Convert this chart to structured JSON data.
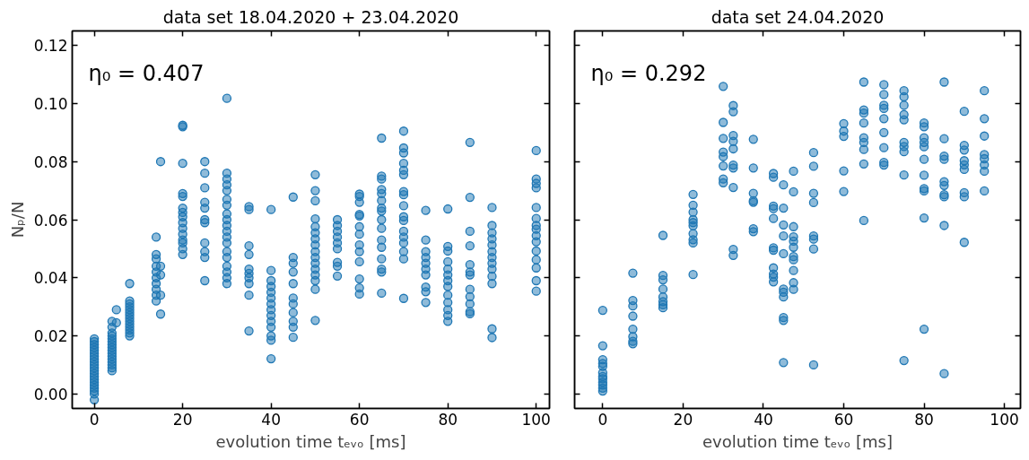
{
  "chart_data": [
    {
      "type": "scatter",
      "title": "data set 18.04.2020 + 23.04.2020",
      "xlabel": "evolution time tₑᵥₒ [ms]",
      "ylabel": "Nₚ/N",
      "annotations": [
        "η₀ = 0.407"
      ],
      "marker": "circle",
      "grid": false,
      "xlim": [
        -5,
        103
      ],
      "ylim": [
        -0.005,
        0.125
      ],
      "xticks": [
        0,
        20,
        40,
        60,
        80,
        100
      ],
      "yticks": [
        {
          "value": 0,
          "label": "0.00"
        },
        {
          "value": 0.02,
          "label": "0.02"
        },
        {
          "value": 0.04,
          "label": "0.04"
        },
        {
          "value": 0.06,
          "label": "0.06"
        },
        {
          "value": 0.08,
          "label": "0.08"
        },
        {
          "value": 0.1,
          "label": "0.10"
        },
        {
          "value": 0.12,
          "label": "0.12"
        }
      ],
      "series": [
        {
          "color": "#1f77b4",
          "x": [
            0,
            0,
            0,
            0,
            0,
            0,
            0,
            0,
            0,
            0,
            0,
            0,
            0,
            0,
            0,
            0,
            0,
            0,
            0,
            0,
            0,
            4,
            4,
            4,
            4,
            4,
            4,
            4,
            4,
            4,
            4,
            4,
            4,
            4,
            4,
            4,
            4,
            5,
            5,
            8,
            8,
            8,
            8,
            8,
            8,
            8,
            8,
            8,
            8,
            8,
            8,
            8,
            8,
            14,
            14,
            14,
            14,
            14,
            14,
            14,
            14,
            14,
            14,
            15,
            15,
            15,
            15,
            15,
            20,
            20,
            20,
            20,
            20,
            20,
            20,
            20,
            20,
            20,
            20,
            20,
            20,
            20,
            20,
            25,
            25,
            25,
            25,
            25,
            25,
            25,
            25,
            25,
            25,
            25,
            30,
            30,
            30,
            30,
            30,
            30,
            30,
            30,
            30,
            30,
            30,
            30,
            30,
            30,
            30,
            30,
            30,
            30,
            30,
            35,
            35,
            35,
            35,
            35,
            35,
            35,
            35,
            35,
            35,
            40,
            40,
            40,
            40,
            40,
            40,
            40,
            40,
            40,
            40,
            40,
            40,
            40,
            40,
            45,
            45,
            45,
            45,
            45,
            45,
            45,
            45,
            45,
            45,
            45,
            50,
            50,
            50,
            50,
            50,
            50,
            50,
            50,
            50,
            50,
            50,
            50,
            50,
            50,
            50,
            50,
            55,
            55,
            55,
            55,
            55,
            55,
            55,
            55,
            55,
            60,
            60,
            60,
            60,
            60,
            60,
            60,
            60,
            60,
            60,
            60,
            60,
            60,
            65,
            65,
            65,
            65,
            65,
            65,
            65,
            65,
            65,
            65,
            65,
            65,
            65,
            65,
            65,
            65,
            70,
            70,
            70,
            70,
            70,
            70,
            70,
            70,
            70,
            70,
            70,
            70,
            70,
            70,
            70,
            70,
            70,
            75,
            75,
            75,
            75,
            75,
            75,
            75,
            75,
            75,
            75,
            80,
            80,
            80,
            80,
            80,
            80,
            80,
            80,
            80,
            80,
            80,
            80,
            80,
            85,
            85,
            85,
            85,
            85,
            85,
            85,
            85,
            85,
            85,
            85,
            85,
            90,
            90,
            90,
            90,
            90,
            90,
            90,
            90,
            90,
            90,
            90,
            90,
            90,
            100,
            100,
            100,
            100,
            100,
            100,
            100,
            100,
            100,
            100,
            100,
            100,
            100,
            100,
            100
          ],
          "values": [
            0.019,
            0.018,
            0.017,
            0.016,
            0.015,
            0.014,
            0.013,
            0.012,
            0.011,
            0.01,
            0.009,
            0.008,
            0.007,
            0.006,
            0.005,
            0.004,
            0.003,
            0.002,
            0.001,
            0.0,
            -0.002,
            0.025,
            0.023,
            0.021,
            0.02,
            0.019,
            0.018,
            0.017,
            0.016,
            0.015,
            0.014,
            0.013,
            0.012,
            0.011,
            0.01,
            0.009,
            0.008,
            0.029,
            0.0245,
            0.038,
            0.032,
            0.031,
            0.03,
            0.029,
            0.028,
            0.027,
            0.026,
            0.025,
            0.024,
            0.023,
            0.022,
            0.021,
            0.02,
            0.054,
            0.048,
            0.0465,
            0.044,
            0.042,
            0.04,
            0.038,
            0.036,
            0.034,
            0.032,
            0.08,
            0.044,
            0.041,
            0.034,
            0.0275,
            0.0925,
            0.092,
            0.0794,
            0.069,
            0.068,
            0.064,
            0.0625,
            0.061,
            0.059,
            0.057,
            0.055,
            0.053,
            0.052,
            0.05,
            0.048,
            0.08,
            0.076,
            0.071,
            0.066,
            0.064,
            0.06,
            0.059,
            0.052,
            0.049,
            0.047,
            0.039,
            0.1018,
            0.076,
            0.074,
            0.072,
            0.07,
            0.067,
            0.065,
            0.062,
            0.06,
            0.058,
            0.056,
            0.054,
            0.052,
            0.049,
            0.047,
            0.044,
            0.042,
            0.04,
            0.038,
            0.0645,
            0.0635,
            0.051,
            0.048,
            0.043,
            0.0415,
            0.04,
            0.038,
            0.034,
            0.0217,
            0.0635,
            0.0425,
            0.039,
            0.037,
            0.035,
            0.033,
            0.031,
            0.029,
            0.027,
            0.025,
            0.023,
            0.02,
            0.0185,
            0.0121,
            0.0678,
            0.047,
            0.045,
            0.042,
            0.038,
            0.033,
            0.031,
            0.028,
            0.025,
            0.023,
            0.0195,
            0.0755,
            0.07,
            0.0665,
            0.0603,
            0.0576,
            0.0555,
            0.0534,
            0.0513,
            0.049,
            0.047,
            0.045,
            0.043,
            0.041,
            0.039,
            0.036,
            0.0253,
            0.06,
            0.058,
            0.056,
            0.054,
            0.052,
            0.05,
            0.0453,
            0.044,
            0.0406,
            0.0688,
            0.068,
            0.066,
            0.0618,
            0.0613,
            0.0576,
            0.055,
            0.0513,
            0.049,
            0.0455,
            0.0396,
            0.0365,
            0.0344,
            0.0881,
            0.075,
            0.074,
            0.0704,
            0.069,
            0.0666,
            0.064,
            0.063,
            0.06,
            0.057,
            0.053,
            0.0505,
            0.0465,
            0.043,
            0.042,
            0.0347,
            0.0905,
            0.0847,
            0.083,
            0.0794,
            0.077,
            0.0755,
            0.0697,
            0.0686,
            0.0648,
            0.061,
            0.0597,
            0.056,
            0.054,
            0.052,
            0.049,
            0.0465,
            0.0329,
            0.0632,
            0.053,
            0.049,
            0.047,
            0.045,
            0.043,
            0.041,
            0.0368,
            0.0352,
            0.0315,
            0.0637,
            0.0508,
            0.0492,
            0.0455,
            0.043,
            0.041,
            0.039,
            0.037,
            0.034,
            0.0315,
            0.029,
            0.027,
            0.025,
            0.0866,
            0.0677,
            0.056,
            0.051,
            0.0445,
            0.042,
            0.041,
            0.036,
            0.0335,
            0.031,
            0.0276,
            0.0283,
            0.0642,
            0.058,
            0.0555,
            0.0534,
            0.0513,
            0.049,
            0.047,
            0.045,
            0.043,
            0.0405,
            0.038,
            0.0224,
            0.0194,
            0.0838,
            0.074,
            0.0725,
            0.071,
            0.0642,
            0.0604,
            0.058,
            0.0567,
            0.0545,
            0.0524,
            0.0492,
            0.0462,
            0.0434,
            0.039,
            0.0354
          ]
        }
      ]
    },
    {
      "type": "scatter",
      "title": "data set 24.04.2020",
      "xlabel": "evolution time tₑᵥₒ [ms]",
      "annotations": [
        "η₀ = 0.292"
      ],
      "marker": "circle",
      "grid": false,
      "tick_labels": "x",
      "xlim": [
        -7,
        104
      ],
      "ylim": [
        -0.005,
        0.125
      ],
      "xticks": [
        0,
        20,
        40,
        60,
        80,
        100
      ],
      "yticks": [
        {
          "value": 0,
          "label": null
        },
        {
          "value": 0.02,
          "label": null
        },
        {
          "value": 0.04,
          "label": null
        },
        {
          "value": 0.06,
          "label": null
        },
        {
          "value": 0.08,
          "label": null
        },
        {
          "value": 0.1,
          "label": null
        },
        {
          "value": 0.12,
          "label": null
        }
      ],
      "series": [
        {
          "color": "#1f77b4",
          "x": [
            0,
            0,
            0,
            0,
            0,
            0,
            0,
            0,
            0,
            0,
            0,
            0,
            7.5,
            7.5,
            7.5,
            7.5,
            7.5,
            7.5,
            7.5,
            7.5,
            15,
            15,
            15,
            15,
            15,
            15,
            15,
            15,
            22.5,
            22.5,
            22.5,
            22.5,
            22.5,
            22.5,
            22.5,
            22.5,
            22.5,
            22.5,
            30,
            30,
            30,
            30,
            30,
            30,
            30,
            30,
            32.5,
            32.5,
            32.5,
            32.5,
            32.5,
            32.5,
            32.5,
            32.5,
            32.5,
            32.5,
            37.5,
            37.5,
            37.5,
            37.5,
            37.5,
            37.5,
            37.5,
            42.5,
            42.5,
            42.5,
            42.5,
            42.5,
            42.5,
            42.5,
            42.5,
            42.5,
            42.5,
            42.5,
            45,
            45,
            45,
            45,
            45,
            45,
            45,
            45,
            45,
            45,
            45,
            47.5,
            47.5,
            47.5,
            47.5,
            47.5,
            47.5,
            47.5,
            47.5,
            47.5,
            47.5,
            47.5,
            52.5,
            52.5,
            52.5,
            52.5,
            52.5,
            52.5,
            52.5,
            52.5,
            60,
            60,
            60,
            60,
            60,
            65,
            65,
            65,
            65,
            65,
            65,
            65,
            65,
            65,
            70,
            70,
            70,
            70,
            70,
            70,
            70,
            70,
            70,
            75,
            75,
            75,
            75,
            75,
            75,
            75,
            75,
            75,
            75,
            80,
            80,
            80,
            80,
            80,
            80,
            80,
            80,
            80,
            80,
            80,
            85,
            85,
            85,
            85,
            85,
            85,
            85,
            85,
            85,
            85,
            90,
            90,
            90,
            90,
            90,
            90,
            90,
            90,
            90,
            95,
            95,
            95,
            95,
            95,
            95,
            95,
            95
          ],
          "values": [
            0.0288,
            0.0166,
            0.0118,
            0.0105,
            0.0095,
            0.0073,
            0.006,
            0.0052,
            0.004,
            0.0031,
            0.002,
            0.001,
            0.0416,
            0.0322,
            0.0303,
            0.0268,
            0.0223,
            0.0197,
            0.0181,
            0.0173,
            0.0546,
            0.0408,
            0.0393,
            0.0361,
            0.0334,
            0.0318,
            0.0307,
            0.0297,
            0.0687,
            0.065,
            0.0626,
            0.06,
            0.059,
            0.0579,
            0.0552,
            0.0531,
            0.052,
            0.0411,
            0.1059,
            0.0935,
            0.088,
            0.0833,
            0.0817,
            0.0785,
            0.074,
            0.0727,
            0.0993,
            0.0972,
            0.089,
            0.087,
            0.0844,
            0.0788,
            0.0778,
            0.0711,
            0.0498,
            0.0477,
            0.0877,
            0.0778,
            0.0691,
            0.0665,
            0.066,
            0.0569,
            0.0559,
            0.0759,
            0.0746,
            0.0647,
            0.0638,
            0.0604,
            0.0503,
            0.0495,
            0.0434,
            0.0413,
            0.0402,
            0.0386,
            0.072,
            0.064,
            0.0582,
            0.0544,
            0.0483,
            0.0361,
            0.035,
            0.0334,
            0.0263,
            0.0253,
            0.0108,
            0.0767,
            0.0696,
            0.0576,
            0.0541,
            0.0526,
            0.0505,
            0.0473,
            0.0462,
            0.0425,
            0.0383,
            0.036,
            0.0831,
            0.0784,
            0.0691,
            0.0659,
            0.0544,
            0.0533,
            0.0499,
            0.01,
            0.0931,
            0.0905,
            0.0887,
            0.0768,
            0.0697,
            0.1074,
            0.0978,
            0.0967,
            0.0933,
            0.0882,
            0.0866,
            0.0842,
            0.0792,
            0.0597,
            0.1065,
            0.1031,
            0.0994,
            0.0983,
            0.0948,
            0.09,
            0.0848,
            0.0797,
            0.0788,
            0.1044,
            0.1023,
            0.0994,
            0.0962,
            0.0944,
            0.0866,
            0.0852,
            0.0834,
            0.0754,
            0.0115,
            0.0933,
            0.092,
            0.0882,
            0.0866,
            0.0851,
            0.0808,
            0.0753,
            0.0707,
            0.0699,
            0.0606,
            0.0223,
            0.1074,
            0.0879,
            0.0819,
            0.0808,
            0.0731,
            0.0718,
            0.0686,
            0.0679,
            0.058,
            0.007,
            0.0973,
            0.0856,
            0.084,
            0.0803,
            0.0789,
            0.0773,
            0.0693,
            0.0679,
            0.0522,
            0.1044,
            0.0948,
            0.0888,
            0.0824,
            0.081,
            0.0789,
            0.0767,
            0.0699
          ]
        }
      ]
    }
  ]
}
